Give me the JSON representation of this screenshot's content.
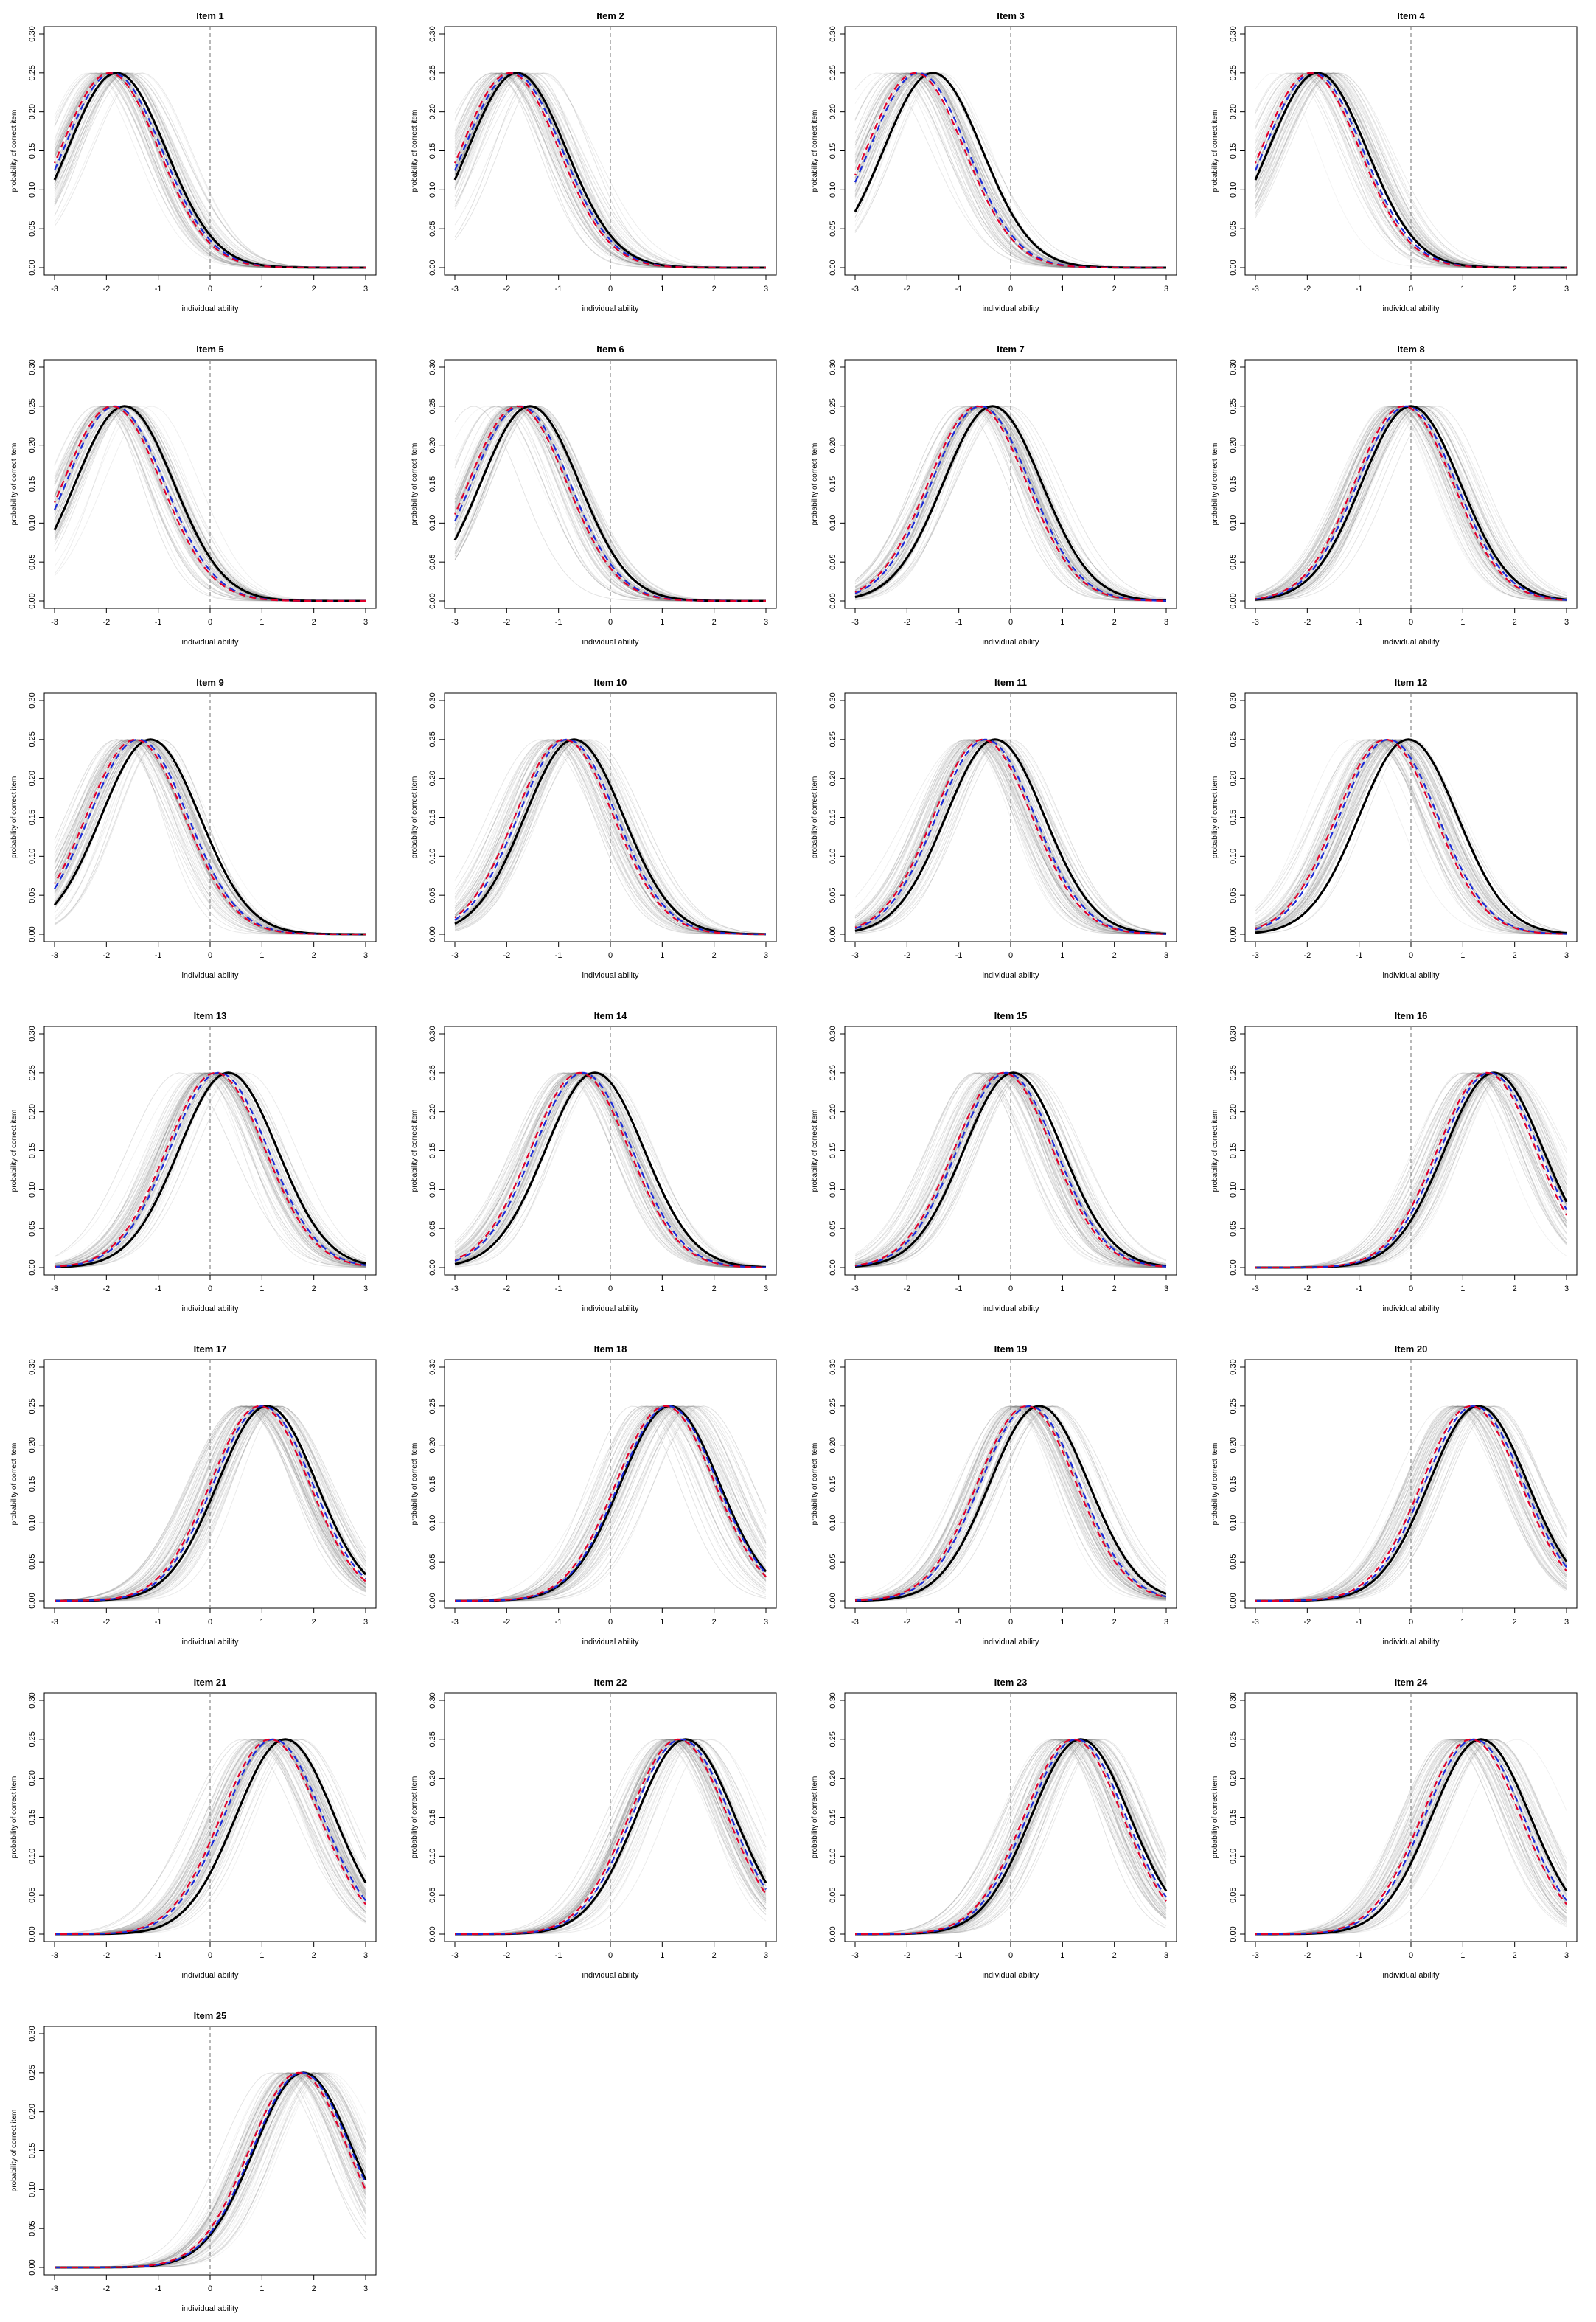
{
  "figure": {
    "layout": {
      "rows": 7,
      "cols": 4
    },
    "xlabel": "individual ability",
    "ylabel": "probability of correct item",
    "xlim": [
      -3,
      3
    ],
    "ylim": [
      0,
      0.3
    ],
    "xticks": [
      -3,
      -2,
      -1,
      0,
      1,
      2,
      3
    ],
    "yticks": [
      "0.00",
      "0.05",
      "0.10",
      "0.15",
      "0.20",
      "0.25",
      "0.30"
    ],
    "colors": {
      "true_curve": "#000000",
      "estimate_a": "#e0002a",
      "estimate_b": "#1a2bd6",
      "posterior_draws": "#808080",
      "zero_line": "#888888"
    },
    "reference_line_x": 0
  },
  "chart_data": [
    {
      "type": "line",
      "title": "Item 1",
      "xlim": [
        -3,
        3
      ],
      "ylim": [
        0,
        0.3
      ],
      "peak": 0.25,
      "true_center": -1.8,
      "est_center": -1.9,
      "width": 0.95
    },
    {
      "type": "line",
      "title": "Item 2",
      "xlim": [
        -3,
        3
      ],
      "ylim": [
        0,
        0.3
      ],
      "peak": 0.25,
      "true_center": -1.8,
      "est_center": -1.9,
      "width": 0.95
    },
    {
      "type": "line",
      "title": "Item 3",
      "xlim": [
        -3,
        3
      ],
      "ylim": [
        0,
        0.3
      ],
      "peak": 0.25,
      "true_center": -1.5,
      "est_center": -1.8,
      "width": 0.95
    },
    {
      "type": "line",
      "title": "Item 4",
      "xlim": [
        -3,
        3
      ],
      "ylim": [
        0,
        0.3
      ],
      "peak": 0.25,
      "true_center": -1.8,
      "est_center": -1.9,
      "width": 0.95
    },
    {
      "type": "line",
      "title": "Item 5",
      "xlim": [
        -3,
        3
      ],
      "ylim": [
        0,
        0.3
      ],
      "peak": 0.25,
      "true_center": -1.65,
      "est_center": -1.85,
      "width": 0.95
    },
    {
      "type": "line",
      "title": "Item 6",
      "xlim": [
        -3,
        3
      ],
      "ylim": [
        0,
        0.3
      ],
      "peak": 0.25,
      "true_center": -1.55,
      "est_center": -1.75,
      "width": 0.95
    },
    {
      "type": "line",
      "title": "Item 7",
      "xlim": [
        -3,
        3
      ],
      "ylim": [
        0,
        0.3
      ],
      "peak": 0.25,
      "true_center": -0.35,
      "est_center": -0.6,
      "width": 0.95
    },
    {
      "type": "line",
      "title": "Item 8",
      "xlim": [
        -3,
        3
      ],
      "ylim": [
        0,
        0.3
      ],
      "peak": 0.25,
      "true_center": 0.0,
      "est_center": -0.1,
      "width": 0.95
    },
    {
      "type": "line",
      "title": "Item 9",
      "xlim": [
        -3,
        3
      ],
      "ylim": [
        0,
        0.3
      ],
      "peak": 0.25,
      "true_center": -1.15,
      "est_center": -1.4,
      "width": 0.95
    },
    {
      "type": "line",
      "title": "Item 10",
      "xlim": [
        -3,
        3
      ],
      "ylim": [
        0,
        0.3
      ],
      "peak": 0.25,
      "true_center": -0.7,
      "est_center": -0.85,
      "width": 0.95
    },
    {
      "type": "line",
      "title": "Item 11",
      "xlim": [
        -3,
        3
      ],
      "ylim": [
        0,
        0.3
      ],
      "peak": 0.25,
      "true_center": -0.3,
      "est_center": -0.5,
      "width": 0.95
    },
    {
      "type": "line",
      "title": "Item 12",
      "xlim": [
        -3,
        3
      ],
      "ylim": [
        0,
        0.3
      ],
      "peak": 0.25,
      "true_center": -0.05,
      "est_center": -0.45,
      "width": 0.95
    },
    {
      "type": "line",
      "title": "Item 13",
      "xlim": [
        -3,
        3
      ],
      "ylim": [
        0,
        0.3
      ],
      "peak": 0.25,
      "true_center": 0.35,
      "est_center": 0.15,
      "width": 0.95
    },
    {
      "type": "line",
      "title": "Item 14",
      "xlim": [
        -3,
        3
      ],
      "ylim": [
        0,
        0.3
      ],
      "peak": 0.25,
      "true_center": -0.3,
      "est_center": -0.55,
      "width": 0.95
    },
    {
      "type": "line",
      "title": "Item 15",
      "xlim": [
        -3,
        3
      ],
      "ylim": [
        0,
        0.3
      ],
      "peak": 0.25,
      "true_center": 0.05,
      "est_center": -0.1,
      "width": 0.95
    },
    {
      "type": "line",
      "title": "Item 16",
      "xlim": [
        -3,
        3
      ],
      "ylim": [
        0,
        0.3
      ],
      "peak": 0.25,
      "true_center": 1.6,
      "est_center": 1.5,
      "width": 0.95
    },
    {
      "type": "line",
      "title": "Item 17",
      "xlim": [
        -3,
        3
      ],
      "ylim": [
        0,
        0.3
      ],
      "peak": 0.25,
      "true_center": 1.1,
      "est_center": 1.0,
      "width": 0.95
    },
    {
      "type": "line",
      "title": "Item 18",
      "xlim": [
        -3,
        3
      ],
      "ylim": [
        0,
        0.3
      ],
      "peak": 0.25,
      "true_center": 1.15,
      "est_center": 1.1,
      "width": 0.95
    },
    {
      "type": "line",
      "title": "Item 19",
      "xlim": [
        -3,
        3
      ],
      "ylim": [
        0,
        0.3
      ],
      "peak": 0.25,
      "true_center": 0.55,
      "est_center": 0.35,
      "width": 0.95
    },
    {
      "type": "line",
      "title": "Item 20",
      "xlim": [
        -3,
        3
      ],
      "ylim": [
        0,
        0.3
      ],
      "peak": 0.25,
      "true_center": 1.3,
      "est_center": 1.2,
      "width": 0.95
    },
    {
      "type": "line",
      "title": "Item 21",
      "xlim": [
        -3,
        3
      ],
      "ylim": [
        0,
        0.3
      ],
      "peak": 0.25,
      "true_center": 1.45,
      "est_center": 1.2,
      "width": 0.95
    },
    {
      "type": "line",
      "title": "Item 22",
      "xlim": [
        -3,
        3
      ],
      "ylim": [
        0,
        0.3
      ],
      "peak": 0.25,
      "true_center": 1.45,
      "est_center": 1.35,
      "width": 0.95
    },
    {
      "type": "line",
      "title": "Item 23",
      "xlim": [
        -3,
        3
      ],
      "ylim": [
        0,
        0.3
      ],
      "peak": 0.25,
      "true_center": 1.35,
      "est_center": 1.25,
      "width": 0.95
    },
    {
      "type": "line",
      "title": "Item 24",
      "xlim": [
        -3,
        3
      ],
      "ylim": [
        0,
        0.3
      ],
      "peak": 0.25,
      "true_center": 1.35,
      "est_center": 1.2,
      "width": 0.95
    },
    {
      "type": "line",
      "title": "Item 25",
      "xlim": [
        -3,
        3
      ],
      "ylim": [
        0,
        0.3
      ],
      "peak": 0.25,
      "true_center": 1.8,
      "est_center": 1.75,
      "width": 0.95
    }
  ]
}
